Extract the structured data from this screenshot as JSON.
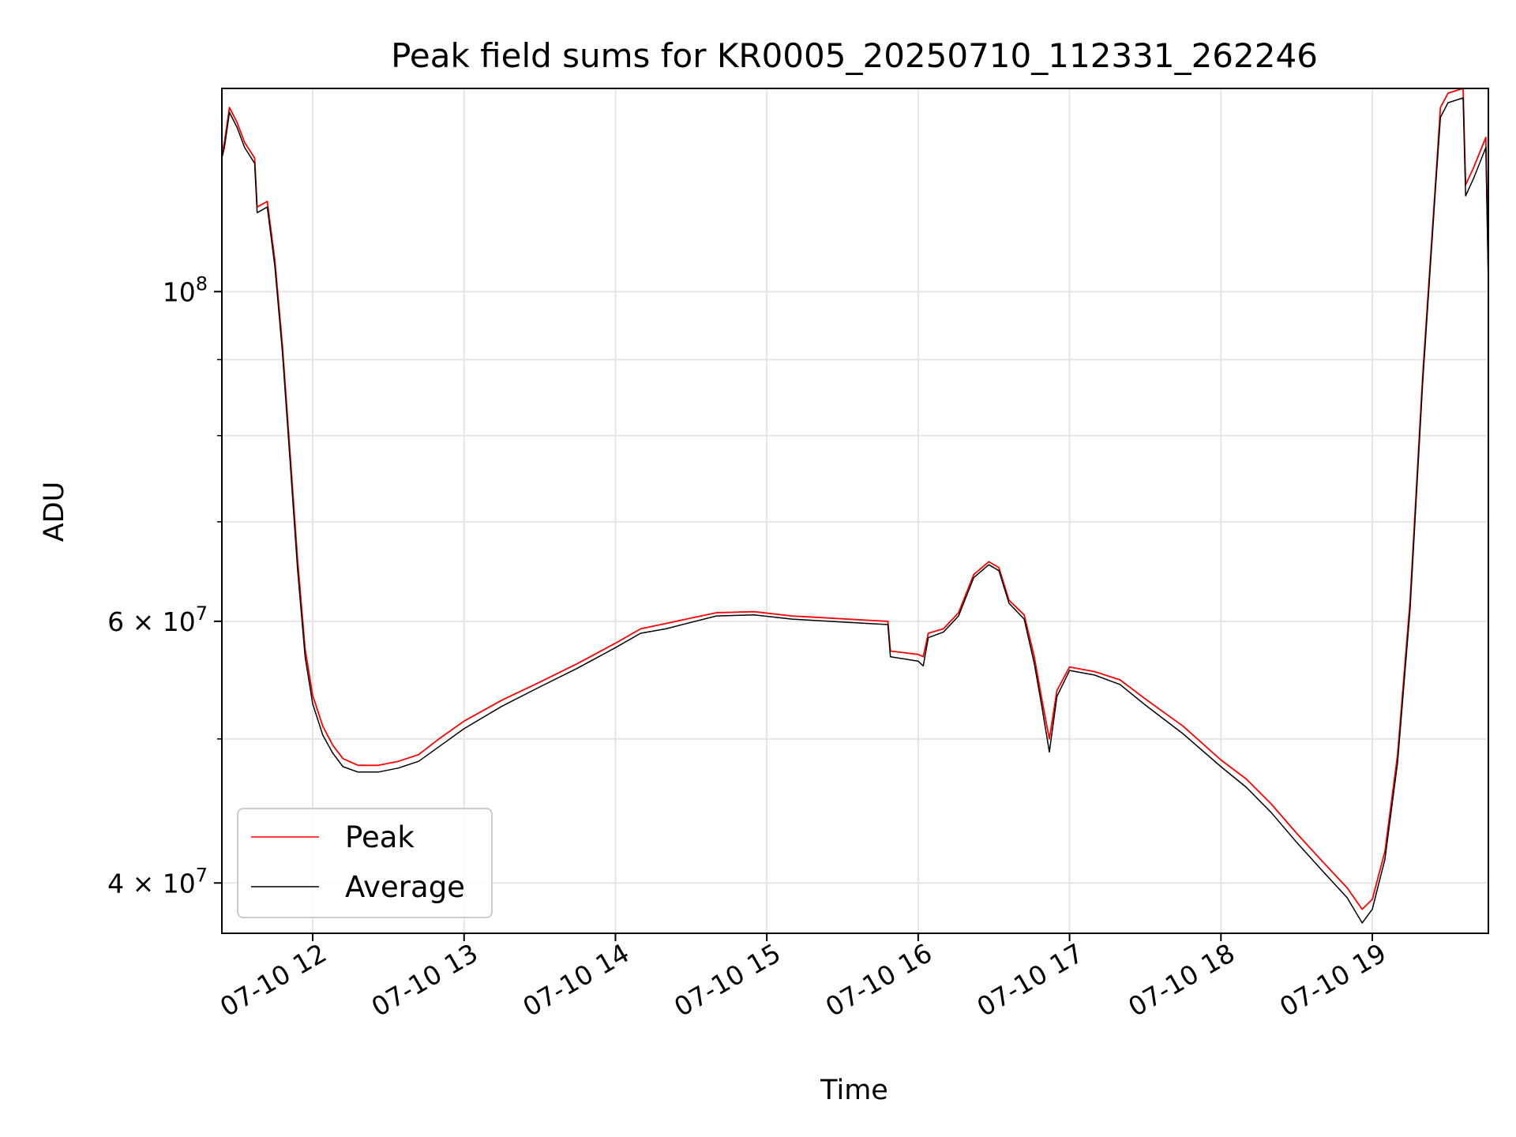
{
  "chart_data": {
    "type": "line",
    "title": "Peak field sums for KR0005_20250710_112331_262246",
    "xlabel": "Time",
    "ylabel": "ADU",
    "yscale": "log",
    "xlim": [
      "07-10 11:24",
      "07-10 19:46"
    ],
    "ylim": [
      37000000,
      137000000
    ],
    "grid": true,
    "legend": {
      "location": "lower left",
      "entries": [
        "Peak",
        "Average"
      ]
    },
    "x_ticks": [
      {
        "t": "07-10 12:00",
        "label": "07-10 12"
      },
      {
        "t": "07-10 13:00",
        "label": "07-10 13"
      },
      {
        "t": "07-10 14:00",
        "label": "07-10 14"
      },
      {
        "t": "07-10 15:00",
        "label": "07-10 15"
      },
      {
        "t": "07-10 16:00",
        "label": "07-10 16"
      },
      {
        "t": "07-10 17:00",
        "label": "07-10 17"
      },
      {
        "t": "07-10 18:00",
        "label": "07-10 18"
      },
      {
        "t": "07-10 19:00",
        "label": "07-10 19"
      }
    ],
    "y_ticks": [
      {
        "value": 40000000,
        "label": "4 × 10",
        "exp": "7"
      },
      {
        "value": 60000000,
        "label": "6 × 10",
        "exp": "7"
      },
      {
        "value": 100000000,
        "label": "10",
        "exp": "8"
      }
    ],
    "y_minor_ticks": [
      50000000,
      70000000,
      80000000,
      90000000
    ],
    "series": [
      {
        "name": "Peak",
        "color": "#ff0000",
        "points": [
          [
            "07-10 11:24",
            124000000
          ],
          [
            "07-10 11:25",
            126000000
          ],
          [
            "07-10 11:27",
            133000000
          ],
          [
            "07-10 11:30",
            130000000
          ],
          [
            "07-10 11:33",
            126000000
          ],
          [
            "07-10 11:37",
            123000000
          ],
          [
            "07-10 11:38",
            114000000
          ],
          [
            "07-10 11:42",
            115000000
          ],
          [
            "07-10 11:45",
            105000000
          ],
          [
            "07-10 11:48",
            92000000
          ],
          [
            "07-10 11:51",
            78000000
          ],
          [
            "07-10 11:54",
            66000000
          ],
          [
            "07-10 11:57",
            57500000
          ],
          [
            "07-10 12:00",
            53500000
          ],
          [
            "07-10 12:04",
            51000000
          ],
          [
            "07-10 12:08",
            49500000
          ],
          [
            "07-10 12:12",
            48500000
          ],
          [
            "07-10 12:18",
            48000000
          ],
          [
            "07-10 12:26",
            48000000
          ],
          [
            "07-10 12:34",
            48300000
          ],
          [
            "07-10 12:42",
            48800000
          ],
          [
            "07-10 12:50",
            50000000
          ],
          [
            "07-10 13:00",
            51400000
          ],
          [
            "07-10 13:15",
            53100000
          ],
          [
            "07-10 13:30",
            54600000
          ],
          [
            "07-10 13:45",
            56200000
          ],
          [
            "07-10 14:00",
            58000000
          ],
          [
            "07-10 14:10",
            59300000
          ],
          [
            "07-10 14:20",
            59800000
          ],
          [
            "07-10 14:30",
            60300000
          ],
          [
            "07-10 14:40",
            60800000
          ],
          [
            "07-10 14:55",
            60900000
          ],
          [
            "07-10 15:10",
            60500000
          ],
          [
            "07-10 15:25",
            60300000
          ],
          [
            "07-10 15:40",
            60100000
          ],
          [
            "07-10 15:48",
            60000000
          ],
          [
            "07-10 15:49",
            57300000
          ],
          [
            "07-10 16:00",
            57000000
          ],
          [
            "07-10 16:02",
            56800000
          ],
          [
            "07-10 16:04",
            58900000
          ],
          [
            "07-10 16:10",
            59300000
          ],
          [
            "07-10 16:16",
            60800000
          ],
          [
            "07-10 16:22",
            64500000
          ],
          [
            "07-10 16:28",
            65800000
          ],
          [
            "07-10 16:32",
            65200000
          ],
          [
            "07-10 16:36",
            62000000
          ],
          [
            "07-10 16:42",
            60600000
          ],
          [
            "07-10 16:46",
            56800000
          ],
          [
            "07-10 16:49",
            53200000
          ],
          [
            "07-10 16:52",
            50000000
          ],
          [
            "07-10 16:55",
            53900000
          ],
          [
            "07-10 17:00",
            55900000
          ],
          [
            "07-10 17:10",
            55500000
          ],
          [
            "07-10 17:20",
            54800000
          ],
          [
            "07-10 17:30",
            53200000
          ],
          [
            "07-10 17:45",
            51000000
          ],
          [
            "07-10 18:00",
            48400000
          ],
          [
            "07-10 18:10",
            47000000
          ],
          [
            "07-10 18:20",
            45200000
          ],
          [
            "07-10 18:30",
            43200000
          ],
          [
            "07-10 18:40",
            41400000
          ],
          [
            "07-10 18:50",
            39700000
          ],
          [
            "07-10 18:56",
            38400000
          ],
          [
            "07-10 19:00",
            39000000
          ],
          [
            "07-10 19:05",
            42000000
          ],
          [
            "07-10 19:10",
            48800000
          ],
          [
            "07-10 19:15",
            62000000
          ],
          [
            "07-10 19:20",
            88000000
          ],
          [
            "07-10 19:25",
            118000000
          ],
          [
            "07-10 19:27",
            133000000
          ],
          [
            "07-10 19:30",
            136000000
          ],
          [
            "07-10 19:36",
            137000000
          ],
          [
            "07-10 19:37",
            118000000
          ],
          [
            "07-10 19:40",
            121000000
          ],
          [
            "07-10 19:45",
            127000000
          ],
          [
            "07-10 19:46",
            103000000
          ]
        ]
      },
      {
        "name": "Average",
        "color": "#000000",
        "points": [
          [
            "07-10 11:24",
            123000000
          ],
          [
            "07-10 11:25",
            125000000
          ],
          [
            "07-10 11:27",
            132000000
          ],
          [
            "07-10 11:30",
            129000000
          ],
          [
            "07-10 11:33",
            125000000
          ],
          [
            "07-10 11:37",
            122000000
          ],
          [
            "07-10 11:38",
            113000000
          ],
          [
            "07-10 11:42",
            114000000
          ],
          [
            "07-10 11:45",
            104000000
          ],
          [
            "07-10 11:48",
            91000000
          ],
          [
            "07-10 11:51",
            77000000
          ],
          [
            "07-10 11:54",
            65000000
          ],
          [
            "07-10 11:57",
            56800000
          ],
          [
            "07-10 12:00",
            52800000
          ],
          [
            "07-10 12:04",
            50300000
          ],
          [
            "07-10 12:08",
            48900000
          ],
          [
            "07-10 12:12",
            47900000
          ],
          [
            "07-10 12:18",
            47500000
          ],
          [
            "07-10 12:26",
            47500000
          ],
          [
            "07-10 12:34",
            47800000
          ],
          [
            "07-10 12:42",
            48300000
          ],
          [
            "07-10 12:50",
            49400000
          ],
          [
            "07-10 13:00",
            50800000
          ],
          [
            "07-10 13:15",
            52600000
          ],
          [
            "07-10 13:30",
            54200000
          ],
          [
            "07-10 13:45",
            55800000
          ],
          [
            "07-10 14:00",
            57600000
          ],
          [
            "07-10 14:10",
            58900000
          ],
          [
            "07-10 14:20",
            59300000
          ],
          [
            "07-10 14:30",
            59900000
          ],
          [
            "07-10 14:40",
            60500000
          ],
          [
            "07-10 14:55",
            60600000
          ],
          [
            "07-10 15:10",
            60200000
          ],
          [
            "07-10 15:25",
            60000000
          ],
          [
            "07-10 15:40",
            59800000
          ],
          [
            "07-10 15:48",
            59700000
          ],
          [
            "07-10 15:49",
            56800000
          ],
          [
            "07-10 16:00",
            56400000
          ],
          [
            "07-10 16:02",
            56000000
          ],
          [
            "07-10 16:04",
            58500000
          ],
          [
            "07-10 16:10",
            59000000
          ],
          [
            "07-10 16:16",
            60500000
          ],
          [
            "07-10 16:22",
            64200000
          ],
          [
            "07-10 16:28",
            65500000
          ],
          [
            "07-10 16:32",
            64900000
          ],
          [
            "07-10 16:36",
            61700000
          ],
          [
            "07-10 16:42",
            60200000
          ],
          [
            "07-10 16:46",
            56200000
          ],
          [
            "07-10 16:49",
            52600000
          ],
          [
            "07-10 16:52",
            49000000
          ],
          [
            "07-10 16:55",
            53400000
          ],
          [
            "07-10 17:00",
            55600000
          ],
          [
            "07-10 17:10",
            55200000
          ],
          [
            "07-10 17:20",
            54400000
          ],
          [
            "07-10 17:30",
            52700000
          ],
          [
            "07-10 17:45",
            50400000
          ],
          [
            "07-10 18:00",
            47900000
          ],
          [
            "07-10 18:10",
            46400000
          ],
          [
            "07-10 18:20",
            44600000
          ],
          [
            "07-10 18:30",
            42600000
          ],
          [
            "07-10 18:40",
            40800000
          ],
          [
            "07-10 18:50",
            39100000
          ],
          [
            "07-10 18:56",
            37600000
          ],
          [
            "07-10 19:00",
            38400000
          ],
          [
            "07-10 19:05",
            41500000
          ],
          [
            "07-10 19:10",
            48200000
          ],
          [
            "07-10 19:15",
            61200000
          ],
          [
            "07-10 19:20",
            87000000
          ],
          [
            "07-10 19:25",
            117000000
          ],
          [
            "07-10 19:27",
            131000000
          ],
          [
            "07-10 19:30",
            134000000
          ],
          [
            "07-10 19:36",
            135000000
          ],
          [
            "07-10 19:37",
            116000000
          ],
          [
            "07-10 19:40",
            119000000
          ],
          [
            "07-10 19:45",
            125000000
          ],
          [
            "07-10 19:46",
            101000000
          ]
        ]
      }
    ]
  }
}
